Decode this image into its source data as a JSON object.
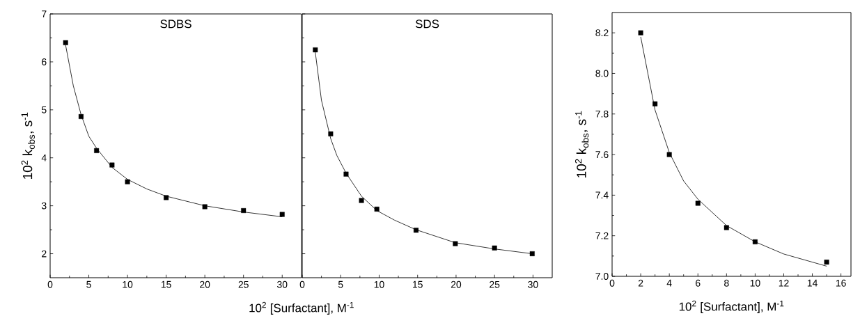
{
  "chart_data": [
    {
      "type": "scatter",
      "title": "SDBS",
      "xlabel": "10$^{2}$ [Surfactant], M$^{-1}$",
      "ylabel": "10$^{2}$ k$_{obs}$, s$^{-1}$",
      "xlim": [
        0,
        32.5
      ],
      "ylim": [
        1.5,
        7
      ],
      "xticks": [
        0,
        5,
        10,
        15,
        20,
        25,
        30
      ],
      "yticks": [
        2,
        3,
        4,
        5,
        6,
        7
      ],
      "grid": false,
      "series": [
        {
          "marker": "square",
          "color": "#000000",
          "x": [
            2,
            4,
            6,
            8,
            10,
            15,
            20,
            25,
            30
          ],
          "values": [
            6.4,
            4.86,
            4.15,
            3.85,
            3.5,
            3.17,
            2.98,
            2.9,
            2.82
          ]
        },
        {
          "type": "line",
          "marker": "none",
          "color": "#000000",
          "x": [
            2,
            3,
            4,
            5,
            6,
            8,
            10,
            12.5,
            15,
            20,
            25,
            30
          ],
          "values": [
            6.35,
            5.5,
            4.9,
            4.45,
            4.2,
            3.8,
            3.55,
            3.35,
            3.2,
            3.0,
            2.87,
            2.77
          ]
        }
      ]
    },
    {
      "type": "scatter",
      "title": "SDS",
      "xlim": [
        0,
        32.5
      ],
      "ylim": [
        1.5,
        7
      ],
      "xticks": [
        0,
        5,
        10,
        15,
        20,
        25,
        30
      ],
      "yticks": [
        2,
        3,
        4,
        5,
        6,
        7
      ],
      "tick_labels": "x",
      "grid": false,
      "series": [
        {
          "marker": "square",
          "color": "#000000",
          "x": [
            1.7,
            3.7,
            5.7,
            7.7,
            9.7,
            14.8,
            19.9,
            25,
            29.9
          ],
          "values": [
            6.25,
            4.5,
            3.66,
            3.11,
            2.93,
            2.49,
            2.21,
            2.12,
            2.0
          ]
        },
        {
          "type": "line",
          "marker": "none",
          "color": "#000000",
          "x": [
            1.7,
            2.5,
            3.7,
            4.5,
            5.7,
            7.7,
            9.7,
            12,
            14.8,
            19.9,
            25,
            29.9
          ],
          "values": [
            6.2,
            5.2,
            4.4,
            4.05,
            3.68,
            3.2,
            2.9,
            2.7,
            2.5,
            2.23,
            2.1,
            2.0
          ]
        }
      ]
    },
    {
      "type": "scatter",
      "xlabel": "10$^{2}$ [Surfactant], M$^{-1}$",
      "ylabel": "10$^{2}$ k$_{obs}$, s$^{-1}$",
      "xlim": [
        0,
        16.7
      ],
      "ylim": [
        7.0,
        8.3
      ],
      "xticks": [
        0,
        2,
        4,
        6,
        8,
        10,
        12,
        14,
        16
      ],
      "yticks": [
        {
          "value": 7,
          "label": "7.0"
        },
        7.2,
        7.4,
        7.6,
        7.8,
        {
          "value": 8,
          "label": "8.0"
        },
        8.2
      ],
      "grid": false,
      "series": [
        {
          "marker": "square",
          "color": "#000000",
          "x": [
            2,
            3,
            4,
            6,
            8,
            10,
            15
          ],
          "values": [
            8.2,
            7.85,
            7.6,
            7.36,
            7.24,
            7.17,
            7.07
          ]
        },
        {
          "type": "line",
          "marker": "none",
          "color": "#000000",
          "x": [
            2,
            3,
            4,
            5,
            6,
            8,
            10,
            12,
            15
          ],
          "values": [
            8.18,
            7.82,
            7.61,
            7.47,
            7.38,
            7.25,
            7.17,
            7.11,
            7.05
          ]
        }
      ]
    }
  ]
}
